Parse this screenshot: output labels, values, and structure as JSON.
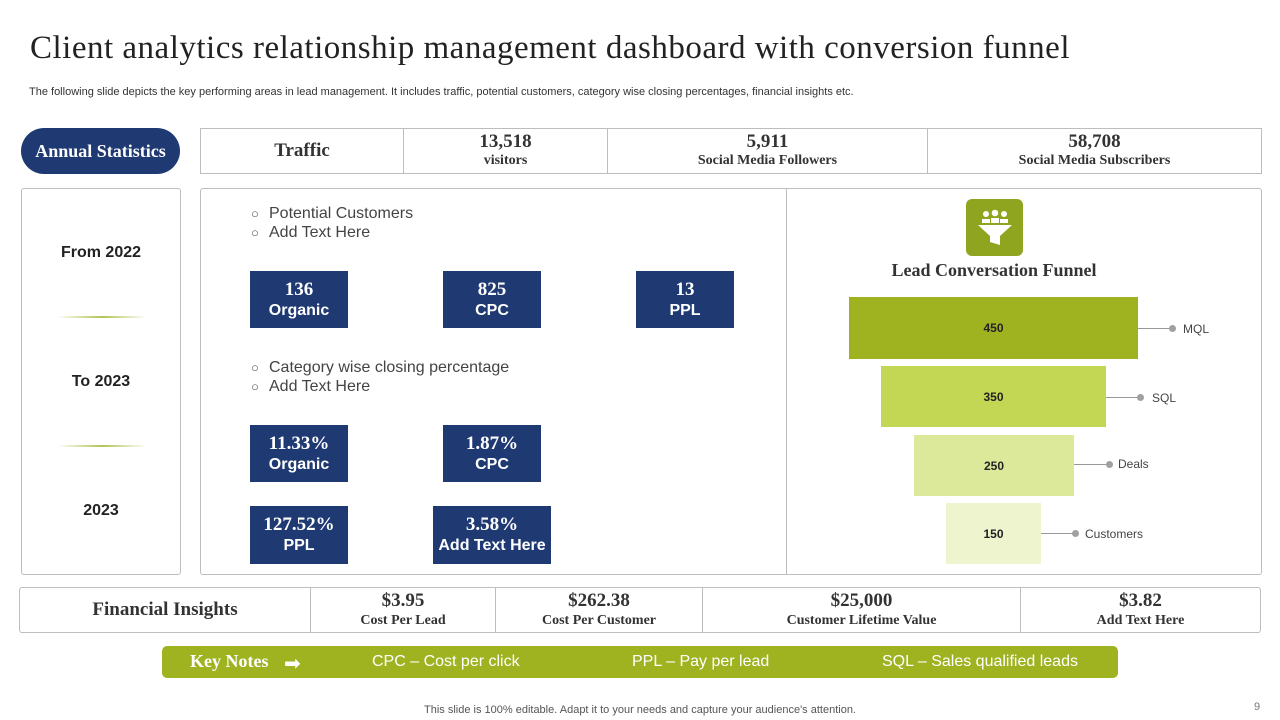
{
  "header": {
    "title": "Client analytics relationship management dashboard with conversion funnel",
    "subtitle": "The following slide depicts the key performing areas in lead management. It includes traffic, potential customers, category wise closing percentages, financial insights etc."
  },
  "annual": {
    "label": "Annual Statistics"
  },
  "traffic": {
    "label": "Traffic",
    "stats": [
      {
        "value": "13,518",
        "label": "visitors"
      },
      {
        "value": "5,911",
        "label": "Social Media Followers"
      },
      {
        "value": "58,708",
        "label": "Social Media Subscribers"
      }
    ]
  },
  "periods": [
    "From 2022",
    "To 2023",
    "2023"
  ],
  "potential": {
    "bullets": [
      "Potential Customers",
      "Add Text Here"
    ],
    "boxes": [
      {
        "value": "136",
        "label": "Organic"
      },
      {
        "value": "825",
        "label": "CPC"
      },
      {
        "value": "13",
        "label": "PPL"
      }
    ]
  },
  "closing": {
    "bullets": [
      "Category wise closing percentage",
      "Add Text Here"
    ],
    "boxes": [
      {
        "value": "11.33%",
        "label": "Organic"
      },
      {
        "value": "1.87%",
        "label": "CPC"
      },
      {
        "value": "127.52%",
        "label": "PPL"
      },
      {
        "value": "3.58%",
        "label": "Add Text Here"
      }
    ]
  },
  "funnel": {
    "icon": "funnel-people-icon",
    "title": "Lead Conversation Funnel",
    "stages": [
      {
        "value": "450",
        "label": "MQL",
        "color": "#9fb321"
      },
      {
        "value": "350",
        "label": "SQL",
        "color": "#c3d754"
      },
      {
        "value": "250",
        "label": "Deals",
        "color": "#dde99a"
      },
      {
        "value": "150",
        "label": "Customers",
        "color": "#eef4cd"
      }
    ]
  },
  "financial": {
    "label": "Financial Insights",
    "items": [
      {
        "value": "$3.95",
        "label": "Cost Per Lead"
      },
      {
        "value": "$262.38",
        "label": "Cost Per Customer"
      },
      {
        "value": "$25,000",
        "label": "Customer Lifetime Value"
      },
      {
        "value": "$3.82",
        "label": "Add Text Here"
      }
    ]
  },
  "key_notes": {
    "title": "Key Notes",
    "arrow_icon": "arrow-right-icon",
    "notes": [
      "CPC – Cost per click",
      "PPL – Pay per lead",
      "SQL – Sales qualified leads"
    ]
  },
  "footer": {
    "text": "This slide is 100% editable. Adapt it to your needs and capture your audience's attention.",
    "page_number": "9"
  },
  "colors": {
    "navy": "#1f3a73",
    "green": "#9fb321",
    "border": "#bdbdbd"
  }
}
